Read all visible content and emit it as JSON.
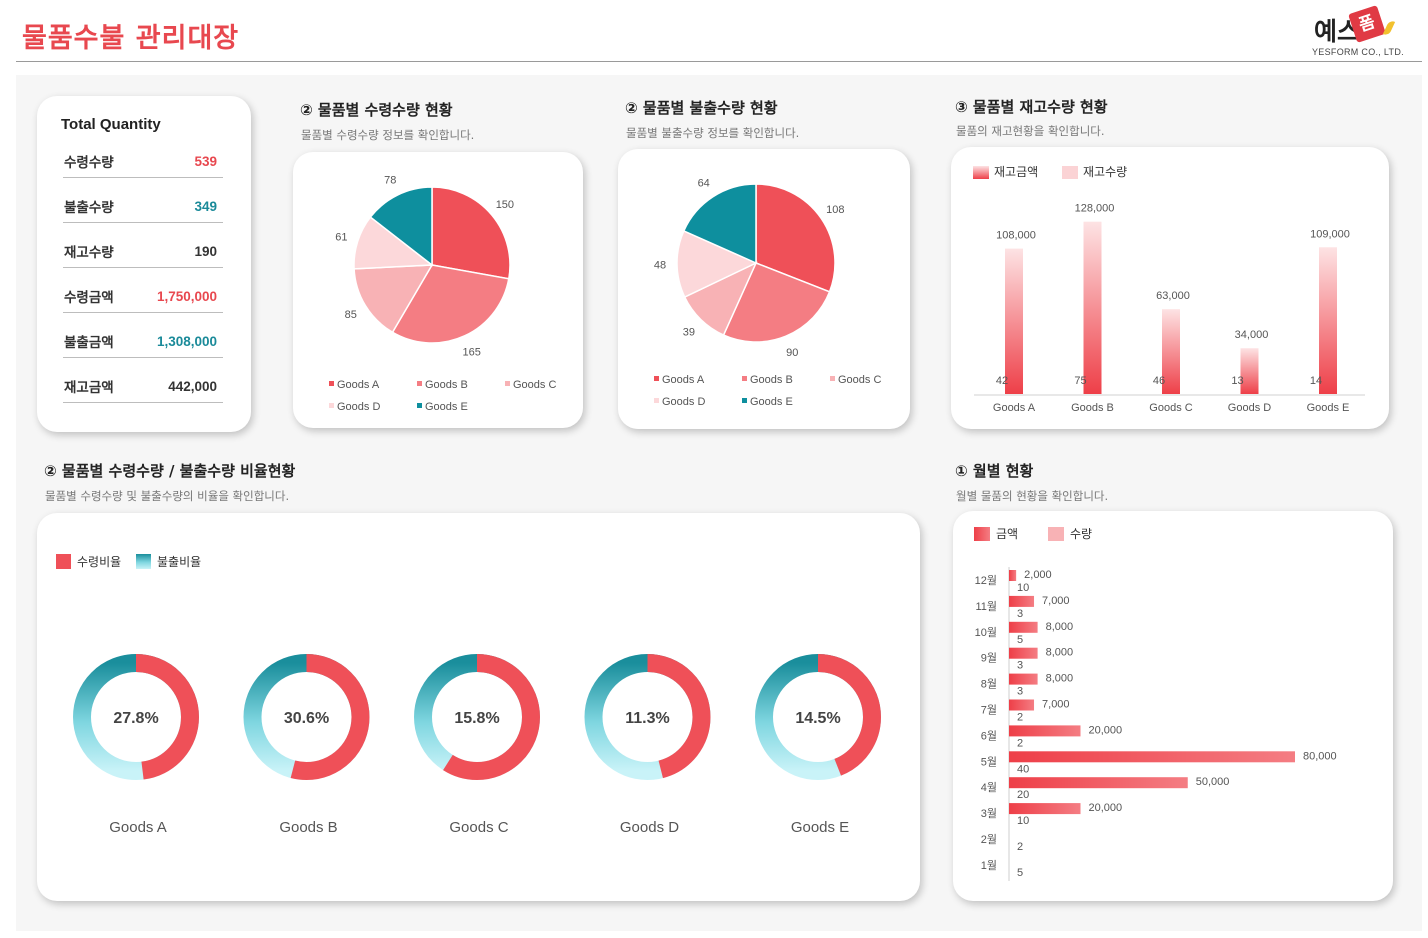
{
  "header": {
    "title": "물품수불 관리대장"
  },
  "logo": {
    "main": "예스",
    "badge": "폼",
    "sub": "YESFORM CO., LTD."
  },
  "total": {
    "title": "Total Quantity",
    "rows": [
      {
        "label": "수령수량",
        "value": "539",
        "color": "#e8484f"
      },
      {
        "label": "불출수량",
        "value": "349",
        "color": "#1a8a99"
      },
      {
        "label": "재고수량",
        "value": "190",
        "color": "#333333"
      },
      {
        "label": "수령금액",
        "value": "1,750,000",
        "color": "#e8484f"
      },
      {
        "label": "불출금액",
        "value": "1,308,000",
        "color": "#1a8a99"
      },
      {
        "label": "재고금액",
        "value": "442,000",
        "color": "#333333"
      }
    ]
  },
  "sections": {
    "receive": {
      "title": "② 물품별 수령수량 현황",
      "sub": "물품별 수령수량 정보를 확인합니다."
    },
    "issue": {
      "title": "② 물품별 불출수량 현황",
      "sub": "물품별 불출수량 정보를 확인합니다."
    },
    "stock": {
      "title": "③ 물품별 재고수량 현황",
      "sub": "물품의 재고현황을 확인합니다."
    },
    "ratio": {
      "title": "② 물품별 수령수량 / 불출수량 비율현황",
      "sub": "물품별 수령수량 및 불출수량의 비율을 확인합니다."
    },
    "monthly": {
      "title": "① 월별 현황",
      "sub": "월별 물품의 현황을 확인합니다."
    }
  },
  "chart_data": [
    {
      "id": "receive_pie",
      "type": "pie",
      "categories": [
        "Goods A",
        "Goods B",
        "Goods C",
        "Goods D",
        "Goods E"
      ],
      "values": [
        150,
        165,
        85,
        61,
        78
      ],
      "colors": [
        "#ef5058",
        "#f47d83",
        "#f8b2b5",
        "#fcd8da",
        "#0e8f9e"
      ],
      "legend": "bottom"
    },
    {
      "id": "issue_pie",
      "type": "pie",
      "categories": [
        "Goods A",
        "Goods B",
        "Goods C",
        "Goods D",
        "Goods E"
      ],
      "values": [
        108,
        90,
        39,
        48,
        64
      ],
      "colors": [
        "#ef5058",
        "#f47d83",
        "#f8b2b5",
        "#fcd8da",
        "#0e8f9e"
      ],
      "legend": "bottom"
    },
    {
      "id": "stock_bar",
      "type": "bar",
      "categories": [
        "Goods A",
        "Goods B",
        "Goods C",
        "Goods D",
        "Goods E"
      ],
      "series": [
        {
          "name": "재고금액",
          "values": [
            108000,
            128000,
            63000,
            34000,
            109000
          ],
          "labels": [
            "108,000",
            "128,000",
            "63,000",
            "34,000",
            "109,000"
          ]
        },
        {
          "name": "재고수량",
          "values": [
            42,
            75,
            46,
            13,
            14
          ]
        }
      ],
      "legend": "top-left"
    },
    {
      "id": "ratio_donuts",
      "type": "pie",
      "categories": [
        "Goods A",
        "Goods B",
        "Goods C",
        "Goods D",
        "Goods E"
      ],
      "series": [
        {
          "name": "수령비율",
          "values": [
            0.48,
            0.54,
            0.59,
            0.46,
            0.44
          ]
        },
        {
          "name": "불출비율",
          "values": [
            0.52,
            0.46,
            0.41,
            0.54,
            0.56
          ]
        }
      ],
      "center_labels": [
        "27.8%",
        "30.6%",
        "15.8%",
        "11.3%",
        "14.5%"
      ],
      "legend": "top-left"
    },
    {
      "id": "monthly_bar",
      "type": "bar",
      "orientation": "horizontal",
      "categories": [
        "12월",
        "11월",
        "10월",
        "9월",
        "8월",
        "7월",
        "6월",
        "5월",
        "4월",
        "3월",
        "2월",
        "1월"
      ],
      "series": [
        {
          "name": "금액",
          "values": [
            2000,
            7000,
            8000,
            8000,
            8000,
            7000,
            20000,
            80000,
            50000,
            20000,
            0,
            0
          ],
          "labels": [
            "2,000",
            "7,000",
            "8,000",
            "8,000",
            "8,000",
            "7,000",
            "20,000",
            "80,000",
            "50,000",
            "20,000",
            "",
            ""
          ]
        },
        {
          "name": "수량",
          "values": [
            10,
            3,
            5,
            3,
            3,
            2,
            2,
            40,
            20,
            10,
            2,
            5
          ]
        }
      ],
      "legend": "top-left"
    }
  ]
}
